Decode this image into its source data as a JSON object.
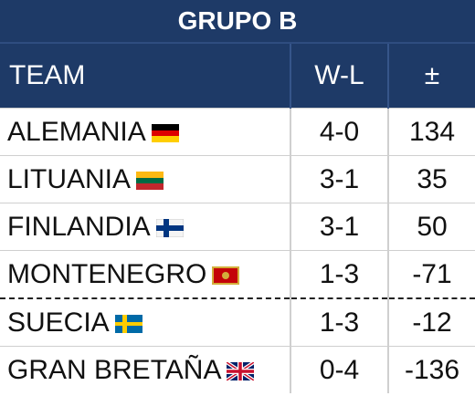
{
  "header": {
    "title": "GRUPO B"
  },
  "table": {
    "columns": [
      "TEAM",
      "W-L",
      "±"
    ],
    "rows": [
      [
        "ALEMANIA",
        "4-0",
        "134"
      ],
      [
        "LITUANIA",
        "3-1",
        "35"
      ],
      [
        "FINLANDIA",
        "3-1",
        "50"
      ],
      [
        "MONTENEGRO",
        "1-3",
        "-71"
      ],
      [
        "SUECIA",
        "1-3",
        "-12"
      ],
      [
        "GRAN BRETAÑA",
        "0-4",
        "-136"
      ]
    ]
  }
}
